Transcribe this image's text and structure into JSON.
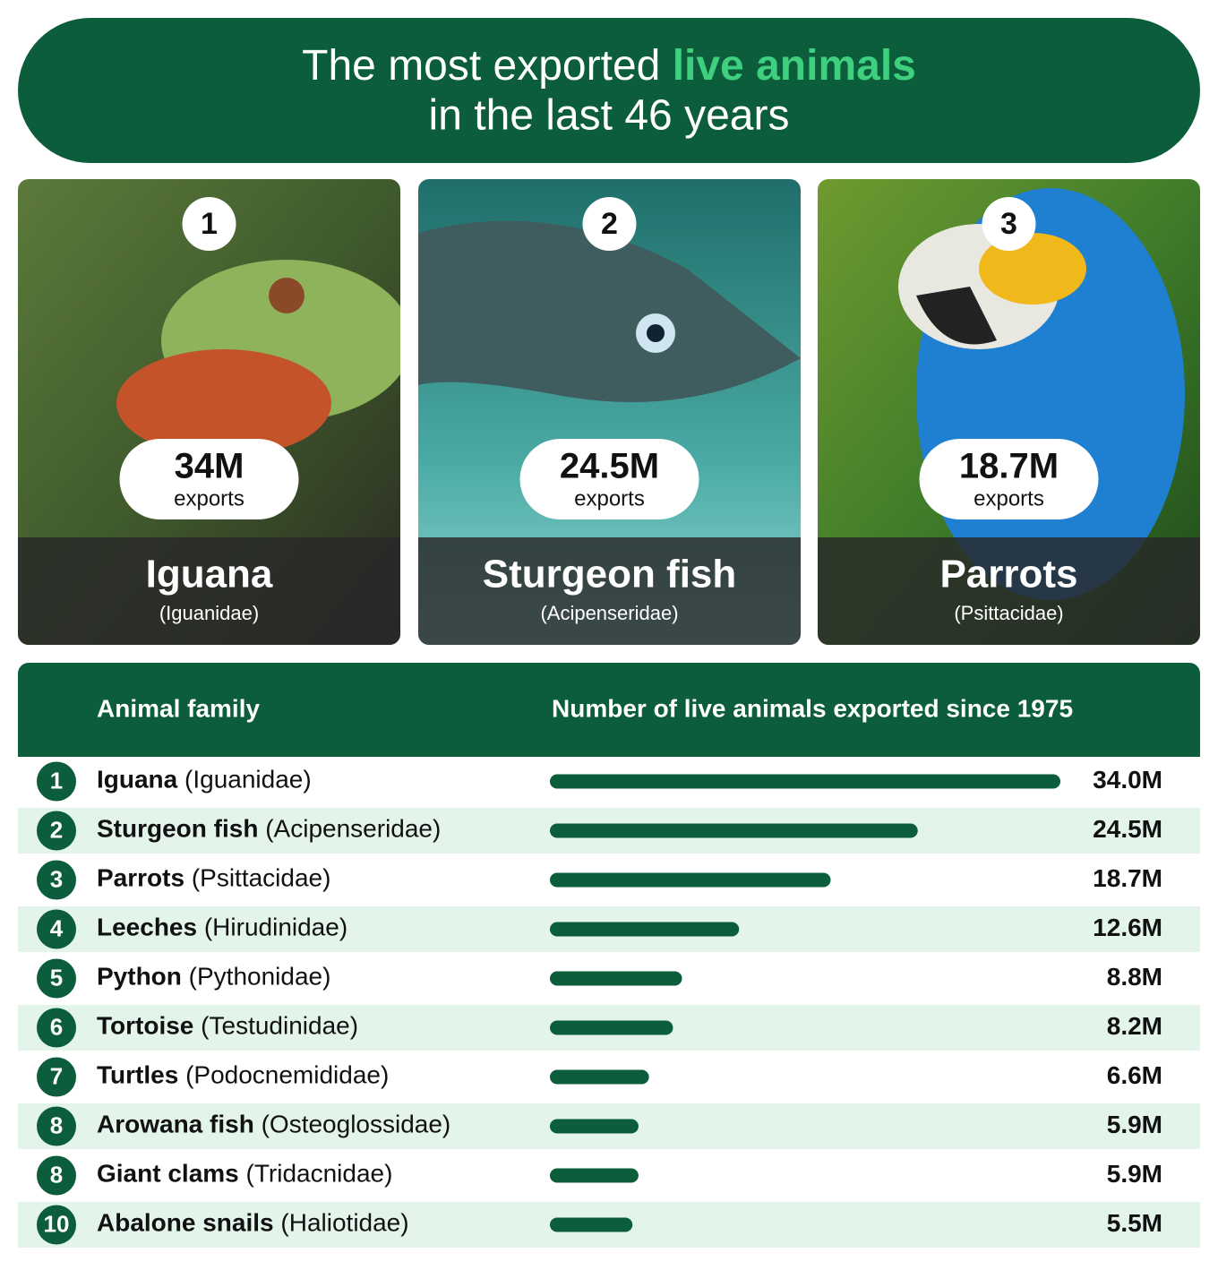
{
  "header": {
    "title_start": "The most exported",
    "title_highlight": "live animals",
    "title_end": "in the last 46 years"
  },
  "cards": [
    {
      "rank": 1,
      "value": "34M",
      "unit": "exports",
      "name": "Iguana",
      "family": "(Iguanidae)"
    },
    {
      "rank": 2,
      "value": "24.5M",
      "unit": "exports",
      "name": "Sturgeon fish",
      "family": "(Acipenseridae)"
    },
    {
      "rank": 3,
      "value": "18.7M",
      "unit": "exports",
      "name": "Parrots",
      "family": "(Psittacidae)"
    }
  ],
  "chart_data": {
    "type": "bar",
    "orientation": "horizontal",
    "color": "#0b5d3b",
    "category_label": "Animal family",
    "value_label": "Number of live animals exported since 1975",
    "ranks": [
      1,
      2,
      3,
      4,
      5,
      6,
      7,
      8,
      8,
      10
    ],
    "categories": [
      "Iguana",
      "Sturgeon fish",
      "Parrots",
      "Leeches",
      "Python",
      "Tortoise",
      "Turtles",
      "Arowana fish",
      "Giant clams",
      "Abalone snails"
    ],
    "families": [
      "(Iguanidae)",
      "(Acipenseridae)",
      "(Psittacidae)",
      "(Hirudinidae)",
      "(Pythonidae)",
      "(Testudinidae)",
      "(Podocnemididae)",
      "(Osteoglossidae)",
      "(Tridacnidae)",
      "(Haliotidae)"
    ],
    "values": [
      34.0,
      24.5,
      18.7,
      12.6,
      8.8,
      8.2,
      6.6,
      5.9,
      5.9,
      5.5
    ],
    "value_labels": [
      "34.0M",
      "24.5M",
      "18.7M",
      "12.6M",
      "8.8M",
      "8.2M",
      "6.6M",
      "5.9M",
      "5.9M",
      "5.5M"
    ]
  }
}
